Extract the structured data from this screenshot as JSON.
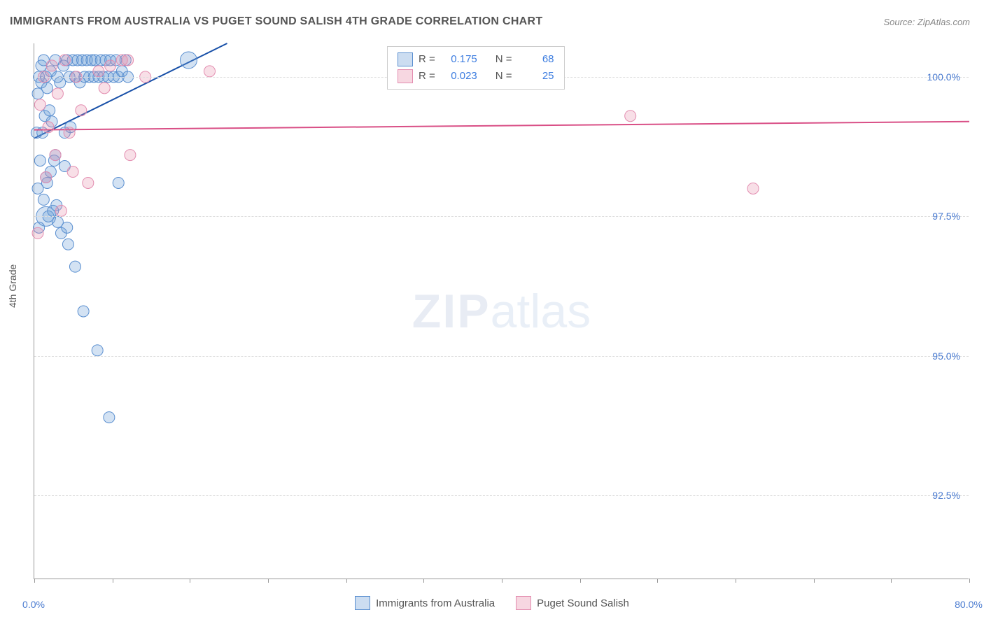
{
  "title": "IMMIGRANTS FROM AUSTRALIA VS PUGET SOUND SALISH 4TH GRADE CORRELATION CHART",
  "source_label": "Source: ZipAtlas.com",
  "y_axis_label": "4th Grade",
  "watermark": {
    "bold": "ZIP",
    "light": "atlas"
  },
  "chart": {
    "type": "scatter",
    "xlim": [
      0,
      80
    ],
    "x_unit": "%",
    "ylim": [
      91.0,
      100.6
    ],
    "y_unit": "%",
    "x_ticks_minor": [
      0,
      6.7,
      13.3,
      20,
      26.7,
      33.3,
      40,
      46.7,
      53.3,
      60,
      66.7,
      73.3,
      80
    ],
    "x_tick_labels": [
      {
        "x": 0,
        "label": "0.0%"
      },
      {
        "x": 80,
        "label": "80.0%"
      }
    ],
    "y_gridlines": [
      92.5,
      95.0,
      97.5,
      100.0
    ],
    "y_tick_labels": [
      {
        "y": 92.5,
        "label": "92.5%"
      },
      {
        "y": 95.0,
        "label": "95.0%"
      },
      {
        "y": 97.5,
        "label": "97.5%"
      },
      {
        "y": 100.0,
        "label": "100.0%"
      }
    ],
    "background_color": "#ffffff",
    "grid_color": "#dddddd",
    "series": [
      {
        "name": "Immigrants from Australia",
        "color_fill": "rgba(108,158,216,0.30)",
        "color_stroke": "#5a8fd0",
        "trend_color": "#1850a8",
        "trend_width": 2,
        "R": 0.175,
        "N": 68,
        "trend": {
          "x1": 0,
          "y1": 98.9,
          "x2": 16.5,
          "y2": 100.6
        },
        "points": [
          {
            "x": 0.2,
            "y": 99.0
          },
          {
            "x": 0.3,
            "y": 99.7
          },
          {
            "x": 0.4,
            "y": 100.0
          },
          {
            "x": 0.6,
            "y": 100.2
          },
          {
            "x": 0.6,
            "y": 99.9
          },
          {
            "x": 0.7,
            "y": 99.0
          },
          {
            "x": 0.8,
            "y": 100.3
          },
          {
            "x": 0.9,
            "y": 99.3
          },
          {
            "x": 1.0,
            "y": 100.0
          },
          {
            "x": 1.0,
            "y": 97.5,
            "r": 14
          },
          {
            "x": 1.1,
            "y": 99.8
          },
          {
            "x": 1.1,
            "y": 98.1
          },
          {
            "x": 1.2,
            "y": 97.5
          },
          {
            "x": 1.3,
            "y": 99.4
          },
          {
            "x": 1.4,
            "y": 100.1
          },
          {
            "x": 1.5,
            "y": 99.2
          },
          {
            "x": 1.6,
            "y": 97.6
          },
          {
            "x": 1.7,
            "y": 98.5
          },
          {
            "x": 1.8,
            "y": 100.3
          },
          {
            "x": 1.8,
            "y": 98.6
          },
          {
            "x": 2.0,
            "y": 97.4
          },
          {
            "x": 2.0,
            "y": 100.0
          },
          {
            "x": 2.2,
            "y": 99.9
          },
          {
            "x": 2.3,
            "y": 97.2
          },
          {
            "x": 2.5,
            "y": 100.2
          },
          {
            "x": 2.6,
            "y": 99.0
          },
          {
            "x": 2.8,
            "y": 100.3
          },
          {
            "x": 2.9,
            "y": 97.0
          },
          {
            "x": 3.0,
            "y": 100.0
          },
          {
            "x": 3.1,
            "y": 99.1
          },
          {
            "x": 3.3,
            "y": 100.3
          },
          {
            "x": 3.5,
            "y": 100.0
          },
          {
            "x": 3.5,
            "y": 96.6
          },
          {
            "x": 3.7,
            "y": 100.3
          },
          {
            "x": 3.9,
            "y": 99.9
          },
          {
            "x": 4.1,
            "y": 100.3
          },
          {
            "x": 4.2,
            "y": 95.8
          },
          {
            "x": 4.3,
            "y": 100.0
          },
          {
            "x": 4.5,
            "y": 100.3
          },
          {
            "x": 4.7,
            "y": 100.0
          },
          {
            "x": 4.9,
            "y": 100.3
          },
          {
            "x": 5.1,
            "y": 100.0
          },
          {
            "x": 5.2,
            "y": 100.3
          },
          {
            "x": 5.4,
            "y": 95.1
          },
          {
            "x": 5.5,
            "y": 100.0
          },
          {
            "x": 5.7,
            "y": 100.3
          },
          {
            "x": 5.9,
            "y": 100.0
          },
          {
            "x": 6.1,
            "y": 100.3
          },
          {
            "x": 6.3,
            "y": 100.0
          },
          {
            "x": 6.4,
            "y": 93.9
          },
          {
            "x": 6.5,
            "y": 100.3
          },
          {
            "x": 6.8,
            "y": 100.0
          },
          {
            "x": 7.0,
            "y": 100.3
          },
          {
            "x": 7.2,
            "y": 98.1
          },
          {
            "x": 7.2,
            "y": 100.0
          },
          {
            "x": 7.5,
            "y": 100.1
          },
          {
            "x": 7.8,
            "y": 100.3
          },
          {
            "x": 8.0,
            "y": 100.0
          },
          {
            "x": 13.2,
            "y": 100.3,
            "r": 12
          },
          {
            "x": 1.4,
            "y": 98.3
          },
          {
            "x": 2.6,
            "y": 98.4
          },
          {
            "x": 0.4,
            "y": 97.3
          },
          {
            "x": 1.0,
            "y": 98.2
          },
          {
            "x": 1.9,
            "y": 97.7
          },
          {
            "x": 0.5,
            "y": 98.5
          },
          {
            "x": 0.3,
            "y": 98.0
          },
          {
            "x": 0.8,
            "y": 97.8
          },
          {
            "x": 2.8,
            "y": 97.3
          }
        ]
      },
      {
        "name": "Puget Sound Salish",
        "color_fill": "rgba(231,140,170,0.28)",
        "color_stroke": "#e38db0",
        "trend_color": "#d94f86",
        "trend_width": 2,
        "R": 0.023,
        "N": 25,
        "trend": {
          "x1": 0,
          "y1": 99.05,
          "x2": 80,
          "y2": 99.2
        },
        "points": [
          {
            "x": 0.3,
            "y": 97.2
          },
          {
            "x": 0.5,
            "y": 99.5
          },
          {
            "x": 0.8,
            "y": 100.0
          },
          {
            "x": 1.0,
            "y": 98.2
          },
          {
            "x": 1.2,
            "y": 99.1
          },
          {
            "x": 1.5,
            "y": 100.2
          },
          {
            "x": 1.8,
            "y": 98.6
          },
          {
            "x": 2.0,
            "y": 99.7
          },
          {
            "x": 2.3,
            "y": 97.6
          },
          {
            "x": 2.6,
            "y": 100.3
          },
          {
            "x": 3.0,
            "y": 99.0
          },
          {
            "x": 3.3,
            "y": 98.3
          },
          {
            "x": 3.6,
            "y": 100.0
          },
          {
            "x": 4.0,
            "y": 99.4
          },
          {
            "x": 4.6,
            "y": 98.1
          },
          {
            "x": 5.5,
            "y": 100.1
          },
          {
            "x": 6.0,
            "y": 99.8
          },
          {
            "x": 6.5,
            "y": 100.2
          },
          {
            "x": 7.5,
            "y": 100.3
          },
          {
            "x": 8.2,
            "y": 98.6
          },
          {
            "x": 8.0,
            "y": 100.3
          },
          {
            "x": 9.5,
            "y": 100.0
          },
          {
            "x": 15.0,
            "y": 100.1
          },
          {
            "x": 51.0,
            "y": 99.3
          },
          {
            "x": 61.5,
            "y": 98.0
          }
        ]
      }
    ]
  },
  "legend_top": {
    "rows": [
      {
        "swatch": "blue",
        "r_label": "R =",
        "r_val": "0.175",
        "n_label": "N =",
        "n_val": "68"
      },
      {
        "swatch": "pink",
        "r_label": "R =",
        "r_val": "0.023",
        "n_label": "N =",
        "n_val": "25"
      }
    ]
  },
  "legend_bottom": [
    {
      "swatch": "blue",
      "label": "Immigrants from Australia"
    },
    {
      "swatch": "pink",
      "label": "Puget Sound Salish"
    }
  ]
}
